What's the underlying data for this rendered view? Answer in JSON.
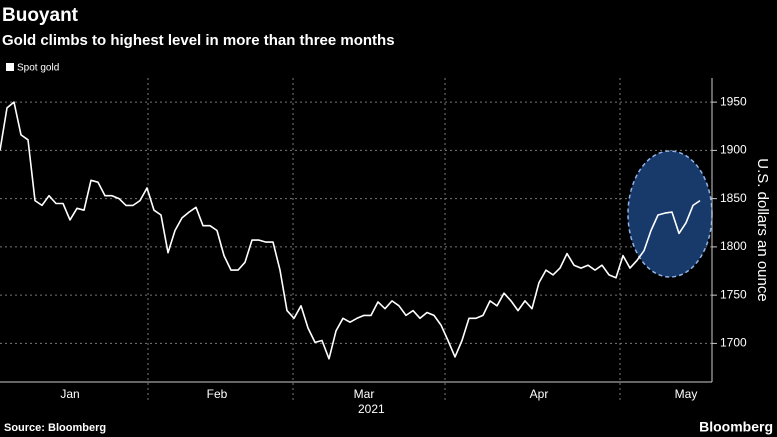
{
  "chart_data": {
    "type": "line",
    "title": "Buoyant",
    "subtitle": "Gold climbs to highest level in more than three months",
    "source": "Source: Bloomberg",
    "brand": "Bloomberg",
    "xlabel": "2021",
    "ylabel": "U.S. dollars an ounce",
    "categories": [
      null,
      null,
      null,
      null,
      null,
      null,
      null,
      null,
      null,
      null,
      "Jan",
      null,
      null,
      null,
      null,
      null,
      null,
      null,
      null,
      null,
      null,
      null,
      null,
      null,
      null,
      null,
      null,
      null,
      null,
      null,
      null,
      "Feb",
      null,
      null,
      null,
      null,
      null,
      null,
      null,
      null,
      null,
      null,
      null,
      null,
      null,
      null,
      null,
      null,
      null,
      null,
      null,
      null,
      "Mar",
      null,
      null,
      null,
      null,
      null,
      null,
      null,
      null,
      null,
      null,
      null,
      null,
      null,
      null,
      null,
      null,
      null,
      null,
      null,
      null,
      null,
      null,
      null,
      null,
      "Apr",
      null,
      null,
      null,
      null,
      null,
      null,
      null,
      null,
      null,
      null,
      null,
      null,
      null,
      null,
      null,
      null,
      null,
      null,
      null,
      null,
      "May",
      null,
      null
    ],
    "series": [
      {
        "name": "Spot gold",
        "color": "#ffffff",
        "values": [
          1900,
          1944,
          1950,
          1916,
          1911,
          1848,
          1843,
          1853,
          1845,
          1845,
          1828,
          1840,
          1838,
          1869,
          1867,
          1853,
          1853,
          1850,
          1843,
          1843,
          1848,
          1861,
          1838,
          1833,
          1794,
          1817,
          1830,
          1836,
          1841,
          1822,
          1822,
          1817,
          1791,
          1776,
          1776,
          1784,
          1807,
          1807,
          1805,
          1805,
          1776,
          1734,
          1726,
          1739,
          1716,
          1701,
          1703,
          1684,
          1713,
          1726,
          1722,
          1726,
          1729,
          1729,
          1743,
          1736,
          1744,
          1739,
          1729,
          1734,
          1726,
          1732,
          1729,
          1719,
          1703,
          1686,
          1703,
          1726,
          1726,
          1729,
          1744,
          1739,
          1752,
          1744,
          1734,
          1744,
          1736,
          1763,
          1776,
          1771,
          1778,
          1793,
          1781,
          1778,
          1781,
          1776,
          1781,
          1771,
          1768,
          1791,
          1778,
          1786,
          1796,
          1817,
          1833,
          1835,
          1836,
          1814,
          1825,
          1843,
          1848
        ]
      }
    ],
    "ylim": [
      1660,
      1975
    ],
    "yticks": [
      1700,
      1750,
      1800,
      1850,
      1900,
      1950
    ],
    "grid": true
  }
}
